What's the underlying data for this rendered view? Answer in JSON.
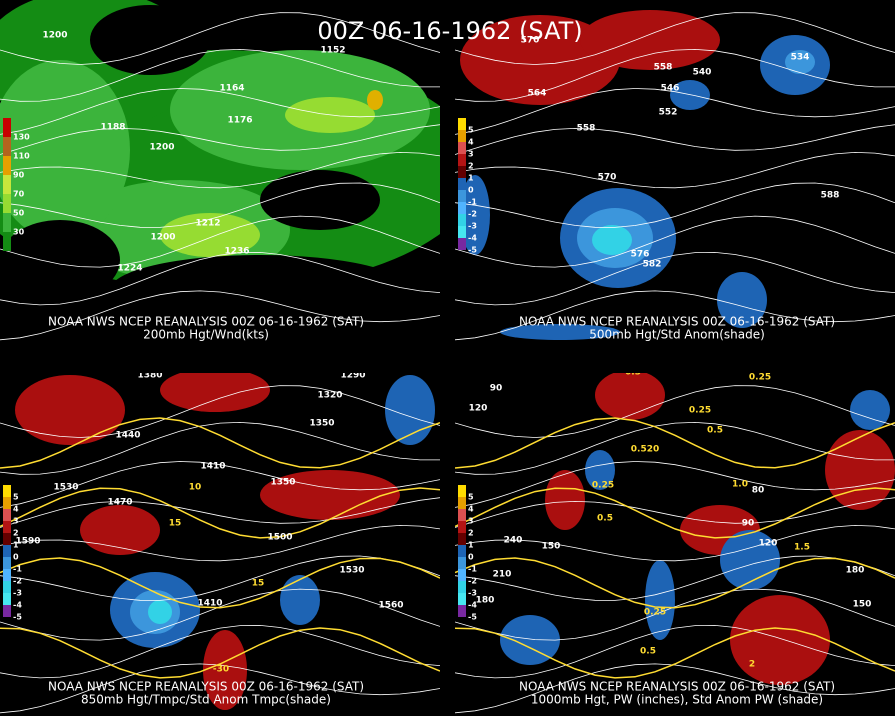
{
  "title": "00Z 06-16-1962 (SAT)",
  "panels": [
    {
      "source": "NOAA NWS NCEP REANALYSIS 00Z 06-16-1962 (SAT)",
      "product": "200mb Hgt/Wnd(kts)",
      "legend": [
        "130",
        "110",
        "90",
        "70",
        "50",
        "30"
      ],
      "contour_labels": [
        "1200",
        "1164",
        "1176",
        "1188",
        "1200",
        "1212",
        "1224",
        "1236",
        "1152",
        "1200"
      ]
    },
    {
      "source": "NOAA NWS NCEP REANALYSIS 00Z 06-16-1962 (SAT)",
      "product": "500mb Hgt/Std Anom(shade)",
      "legend": [
        "5",
        "4",
        "3",
        "2",
        "1",
        "0",
        "-1",
        "-2",
        "-3",
        "-4",
        "-5"
      ],
      "contour_labels": [
        "570",
        "558",
        "540",
        "564",
        "546",
        "552",
        "558",
        "570",
        "588",
        "582",
        "576",
        "534"
      ]
    },
    {
      "source": "NOAA NWS NCEP REANALYSIS 00Z 06-16-1962 (SAT)",
      "product": "850mb Hgt/Tmpc/Std Anom Tmpc(shade)",
      "legend": [
        "5",
        "4",
        "3",
        "2",
        "1",
        "0",
        "-1",
        "-2",
        "-3",
        "-4",
        "-5"
      ],
      "contour_labels": [
        "1380",
        "1290",
        "1320",
        "1350",
        "1440",
        "1410",
        "1470",
        "1530",
        "1500",
        "1590",
        "1530",
        "1560",
        "1410",
        "1350",
        "10",
        "15",
        "15",
        "-30"
      ]
    },
    {
      "source": "NOAA NWS NCEP REANALYSIS 00Z 06-16-1962 (SAT)",
      "product": "1000mb Hgt, PW (inches), Std Anom PW (shade)",
      "legend": [
        "5",
        "4",
        "3",
        "2",
        "1",
        "0",
        "-1",
        "-2",
        "-3",
        "-4",
        "-5"
      ],
      "contour_labels": [
        "90",
        "120",
        "0.5",
        "0.25",
        "0.25",
        "0.5",
        "0.520",
        "0.25",
        "0.5",
        "240",
        "150",
        "210",
        "180",
        "90",
        "120",
        "1.5",
        "180",
        "150",
        "0.25",
        "0.5",
        "2",
        "1.0",
        "80"
      ]
    }
  ]
}
